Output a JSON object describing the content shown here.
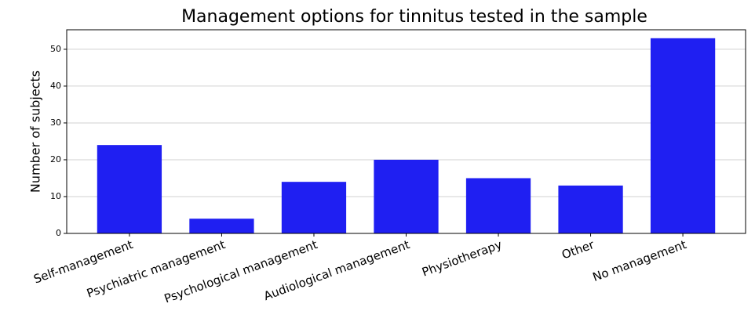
{
  "chart_data": {
    "type": "bar",
    "title": "Management options for tinnitus tested in the sample",
    "ylabel": "Number of subjects",
    "categories": [
      "Self-management",
      "Psychiatric management",
      "Psychological management",
      "Audiological management",
      "Physiotherapy",
      "Other",
      "No management"
    ],
    "values": [
      24,
      4,
      14,
      20,
      15,
      13,
      53
    ],
    "color": "#1f1ff2",
    "ylim": [
      0,
      55.3
    ],
    "yticks": [
      0,
      10,
      20,
      30,
      40,
      50
    ],
    "grid": true
  }
}
